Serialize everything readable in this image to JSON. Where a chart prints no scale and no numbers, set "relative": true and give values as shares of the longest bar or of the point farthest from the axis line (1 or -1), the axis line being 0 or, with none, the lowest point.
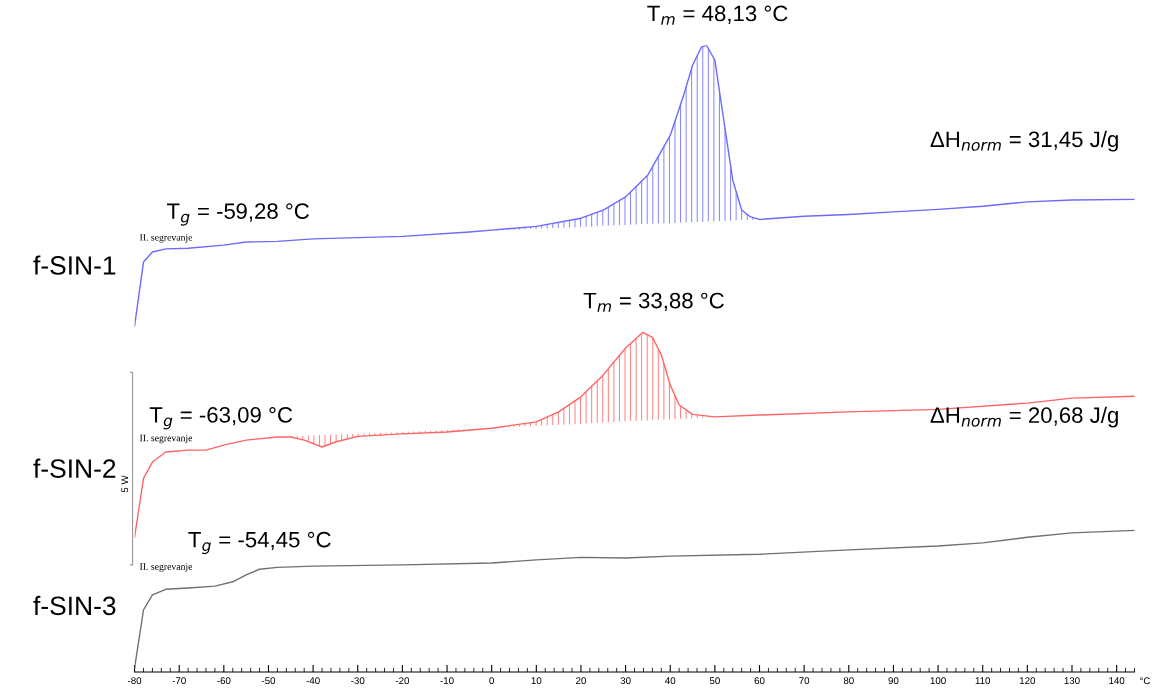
{
  "chart_data": {
    "type": "line",
    "relative": true,
    "xlabel": "°C",
    "xlim": [
      -80,
      144
    ],
    "xticks": [
      -80,
      -70,
      -60,
      -50,
      -40,
      -30,
      -20,
      -10,
      0,
      10,
      20,
      30,
      40,
      50,
      60,
      70,
      80,
      90,
      100,
      110,
      120,
      130,
      140
    ],
    "grid": false,
    "legend": false,
    "marker": "none",
    "line_style": "solid",
    "series": [
      {
        "name": "f-SIN-1",
        "color": "#6a6aff",
        "x": [
          -80,
          -78,
          -76,
          -73,
          -68,
          -60,
          -55,
          -48,
          -40,
          -20,
          -5,
          0,
          10,
          20,
          25,
          30,
          35,
          40,
          43,
          45,
          47,
          48.13,
          50,
          52,
          54,
          56,
          58,
          60,
          70,
          80,
          90,
          100,
          110,
          120,
          130,
          144
        ],
        "values": [
          0.552,
          0.654,
          0.67,
          0.675,
          0.676,
          0.681,
          0.686,
          0.687,
          0.691,
          0.695,
          0.702,
          0.705,
          0.711,
          0.724,
          0.737,
          0.758,
          0.793,
          0.856,
          0.92,
          0.968,
          0.997,
          1.0,
          0.976,
          0.88,
          0.785,
          0.737,
          0.726,
          0.722,
          0.727,
          0.73,
          0.734,
          0.738,
          0.743,
          0.75,
          0.753,
          0.754
        ],
        "lower": [
          null,
          null,
          null,
          null,
          null,
          null,
          null,
          null,
          null,
          null,
          0.702,
          0.704,
          0.707,
          0.71,
          0.712,
          0.713,
          0.715,
          0.716,
          0.717,
          0.718,
          0.718,
          0.719,
          0.719,
          0.72,
          0.72,
          0.721,
          0.721,
          0.722,
          null,
          null,
          null,
          null,
          null,
          null,
          null,
          null
        ],
        "upper": [
          null,
          null,
          null,
          null,
          null,
          null,
          null,
          null,
          null,
          null,
          0.702,
          0.705,
          0.711,
          0.724,
          0.737,
          0.758,
          0.793,
          0.856,
          0.92,
          0.968,
          0.997,
          1.0,
          0.976,
          0.88,
          0.785,
          0.737,
          0.726,
          0.722,
          null,
          null,
          null,
          null,
          null,
          null,
          null,
          null
        ]
      },
      {
        "name": "f-SIN-2",
        "color": "#ff6464",
        "x": [
          -80,
          -78,
          -76,
          -73,
          -68,
          -64,
          -60,
          -55,
          -48,
          -45,
          -42,
          -38,
          -35,
          -30,
          -20,
          -10,
          0,
          10,
          15,
          20,
          25,
          30,
          33.88,
          36,
          38,
          40,
          42,
          45,
          50,
          60,
          80,
          100,
          120,
          130,
          144
        ],
        "values": [
          0.215,
          0.309,
          0.335,
          0.351,
          0.354,
          0.354,
          0.362,
          0.37,
          0.375,
          0.375,
          0.37,
          0.359,
          0.367,
          0.376,
          0.38,
          0.383,
          0.389,
          0.399,
          0.415,
          0.439,
          0.474,
          0.517,
          0.542,
          0.534,
          0.506,
          0.458,
          0.426,
          0.411,
          0.407,
          0.41,
          0.415,
          0.419,
          0.429,
          0.437,
          0.44
        ],
        "lower": [
          null,
          null,
          null,
          null,
          null,
          null,
          null,
          null,
          0.375,
          0.376,
          0.377,
          0.378,
          0.379,
          0.38,
          0.383,
          0.386,
          0.389,
          0.393,
          0.394,
          0.396,
          0.398,
          0.4,
          0.401,
          0.402,
          0.403,
          0.403,
          0.404,
          0.405,
          0.407,
          null,
          null,
          null,
          null,
          null,
          null
        ],
        "upper": [
          null,
          null,
          null,
          null,
          null,
          null,
          null,
          null,
          0.375,
          0.375,
          0.37,
          0.359,
          0.367,
          0.376,
          0.38,
          0.383,
          0.389,
          0.399,
          0.415,
          0.439,
          0.474,
          0.517,
          0.542,
          0.534,
          0.506,
          0.458,
          0.426,
          0.411,
          0.407,
          null,
          null,
          null,
          null,
          null,
          null
        ]
      },
      {
        "name": "f-SIN-3",
        "color": "#707070",
        "x": [
          -80,
          -78,
          -76,
          -73,
          -68,
          -62,
          -58,
          -55,
          -52,
          -48,
          -40,
          -20,
          0,
          10,
          20,
          30,
          40,
          60,
          80,
          100,
          110,
          120,
          130,
          144
        ],
        "values": [
          0.006,
          0.099,
          0.123,
          0.132,
          0.134,
          0.137,
          0.144,
          0.155,
          0.164,
          0.167,
          0.169,
          0.171,
          0.174,
          0.179,
          0.183,
          0.182,
          0.185,
          0.188,
          0.195,
          0.201,
          0.206,
          0.215,
          0.222,
          0.226
        ]
      }
    ],
    "annotations": [
      {
        "text": "T$_{m}$ = 48,13 °C",
        "x": 48.13,
        "y": 1.0
      },
      {
        "text": "T$_{g}$ = -59,28 °C",
        "x": -59.28,
        "y": 0.681
      },
      {
        "text": "T$_{m}$ = 33,88 °C",
        "x": 33.88,
        "y": 0.542
      },
      {
        "text": "T$_{g}$ = -63,09 °C",
        "x": -63.09,
        "y": 0.356
      },
      {
        "text": "T$_{g}$ = -54,45 °C",
        "x": -54.45,
        "y": 0.157
      },
      "ΔH$_{norm}$ = 31,45 J/g",
      "ΔH$_{norm}$ = 20,68 J/g",
      "II. segrevanje",
      "II. segrevanje",
      "II. segrevanje",
      "5 W"
    ]
  }
}
